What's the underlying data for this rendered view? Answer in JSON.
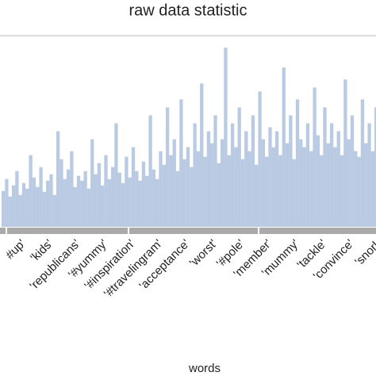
{
  "chart_data": {
    "type": "bar",
    "title": "raw data statistic",
    "x_label": "words",
    "categories": [
      null,
      null,
      null,
      null,
      null,
      null,
      "#up'",
      null,
      null,
      null,
      null,
      null,
      null,
      null,
      "'kids'",
      null,
      null,
      null,
      null,
      null,
      null,
      null,
      "'republicans'",
      null,
      null,
      null,
      null,
      null,
      null,
      null,
      "'#yummy'",
      null,
      null,
      null,
      null,
      null,
      null,
      null,
      "'#inspiration'",
      null,
      null,
      null,
      null,
      null,
      null,
      null,
      "'#travelingram'",
      null,
      null,
      null,
      null,
      null,
      null,
      null,
      "'acceptance'",
      null,
      null,
      null,
      null,
      null,
      null,
      null,
      "'worst'",
      null,
      null,
      null,
      null,
      null,
      null,
      null,
      "'#pole'",
      null,
      null,
      null,
      null,
      null,
      null,
      null,
      "'member'",
      null,
      null,
      null,
      null,
      null,
      null,
      null,
      "'mummy'",
      null,
      null,
      null,
      null,
      null,
      null,
      null,
      "'tackle'",
      null,
      null,
      null,
      null,
      null,
      null,
      null,
      "'convince'",
      null,
      null,
      null,
      null,
      null,
      null,
      null,
      "'snork",
      null,
      null,
      null,
      null,
      null,
      null,
      null
    ],
    "values": [
      45,
      60,
      38,
      52,
      70,
      40,
      55,
      48,
      90,
      62,
      50,
      75,
      44,
      58,
      66,
      40,
      120,
      85,
      60,
      72,
      95,
      50,
      64,
      58,
      70,
      48,
      110,
      66,
      80,
      52,
      90,
      60,
      75,
      130,
      68,
      55,
      88,
      62,
      100,
      70,
      58,
      82,
      64,
      140,
      72,
      60,
      95,
      78,
      150,
      90,
      110,
      70,
      160,
      85,
      100,
      75,
      130,
      95,
      180,
      88,
      120,
      105,
      140,
      80,
      110,
      225,
      90,
      130,
      100,
      150,
      85,
      120,
      95,
      140,
      78,
      170,
      110,
      88,
      125,
      100,
      120,
      90,
      200,
      105,
      140,
      85,
      160,
      110,
      100,
      130,
      95,
      175,
      115,
      90,
      150,
      105,
      130,
      100,
      120,
      90,
      185,
      110,
      140,
      95,
      88,
      160,
      105,
      130,
      95,
      150,
      100,
      120,
      110,
      90,
      140,
      100,
      130,
      95
    ],
    "color": "#7f9fcb",
    "ylim": [
      0,
      240
    ]
  }
}
